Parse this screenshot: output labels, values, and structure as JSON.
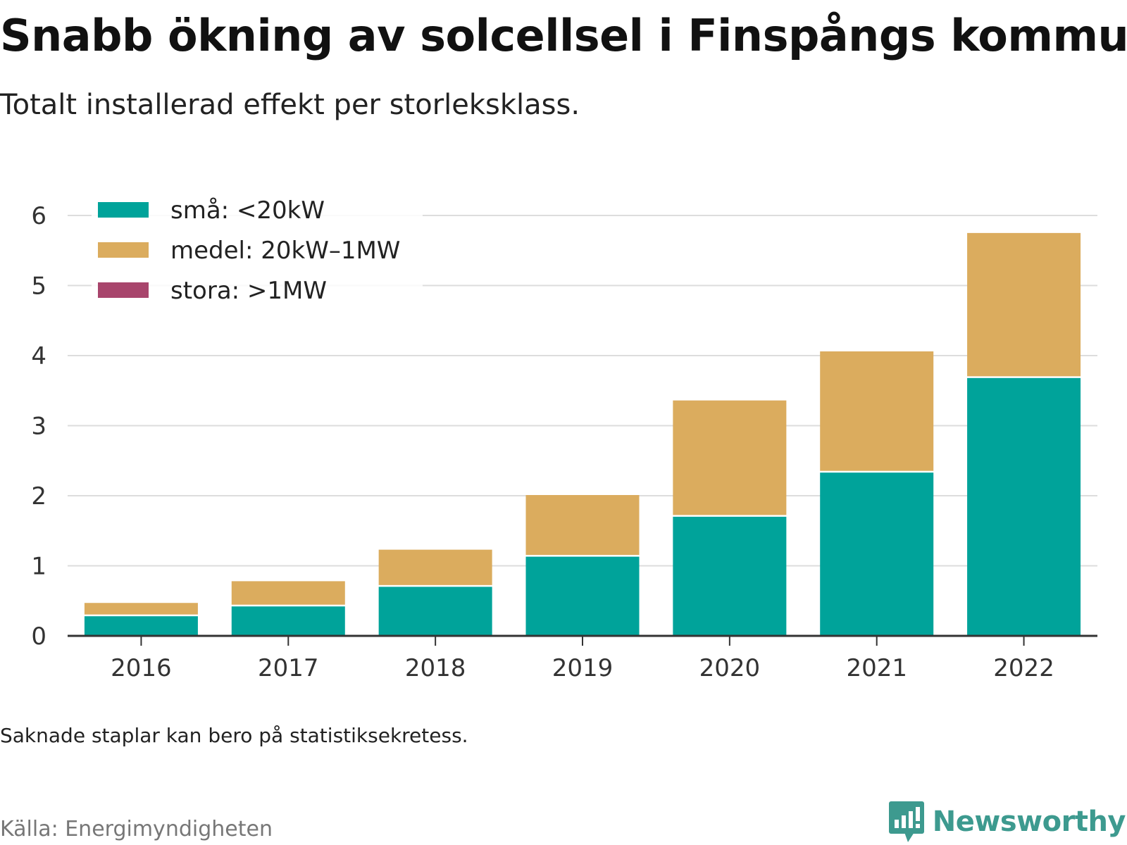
{
  "header": {
    "title": "Snabb ökning av solcellsel i Finspångs kommun",
    "subtitle": "Totalt installerad effekt per storleksklass."
  },
  "footer": {
    "note": "Saknade staplar kan bero på statistiksekretess.",
    "source": "Källa: Energimyndigheten",
    "brand": "Newsworthy",
    "brand_icon": "newsworthy-logo-icon"
  },
  "chart_data": {
    "type": "bar",
    "stacked": true,
    "categories": [
      "2016",
      "2017",
      "2018",
      "2019",
      "2020",
      "2021",
      "2022"
    ],
    "series": [
      {
        "name": "små: <20kW",
        "color": "#00a39a",
        "values": [
          0.28,
          0.42,
          0.7,
          1.13,
          1.7,
          2.33,
          3.68
        ]
      },
      {
        "name": "medel: 20kW–1MW",
        "color": "#dbac5e",
        "values": [
          0.19,
          0.36,
          0.53,
          0.88,
          1.66,
          1.73,
          2.07
        ]
      },
      {
        "name": "stora: >1MW",
        "color": "#a8456c",
        "values": [
          0,
          0,
          0,
          0,
          0,
          0,
          0
        ]
      }
    ],
    "ylim": [
      0,
      6
    ],
    "yticks": [
      "0",
      "1",
      "2",
      "3",
      "4",
      "5",
      "6"
    ],
    "xlabel": "",
    "ylabel": "",
    "grid": true,
    "legend_position": "top-left"
  }
}
